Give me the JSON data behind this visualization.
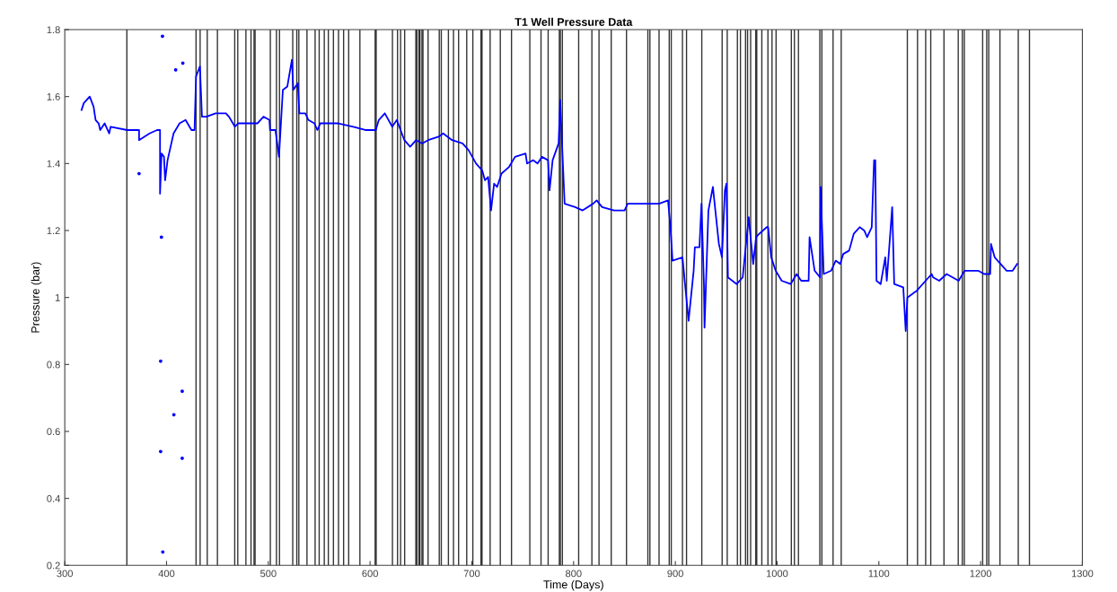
{
  "chart_data": {
    "type": "line",
    "title": "T1 Well Pressure Data",
    "xlabel": "Time (Days)",
    "ylabel": "Pressure (bar)",
    "xlim": [
      300,
      1300
    ],
    "xticks": [
      300,
      400,
      500,
      600,
      700,
      800,
      900,
      1000,
      1100,
      1200,
      1300
    ],
    "ylim": [
      0.2,
      1.8
    ],
    "yticks": [
      0.2,
      0.4,
      0.6,
      0.8,
      1,
      1.2,
      1.4,
      1.6,
      1.8
    ],
    "grid": false,
    "marker": "none",
    "line_style": "solid",
    "series": [
      {
        "color": "#0000ff",
        "x": [
          316.5,
          318.6,
          324.5,
          328.3,
          330.3,
          333.3,
          334.8,
          339.2,
          343.6,
          345.1,
          361.3,
          362.7,
          373,
          373,
          383.3,
          390.7,
          393.6,
          393.6,
          395.1,
          397.5,
          398.6,
          401,
          406.9,
          412.8,
          418.7,
          424.5,
          427.5,
          429,
          432.8,
          434.8,
          439.2,
          448.1,
          458.4,
          461.3,
          467.2,
          470.2,
          483.4,
          489.3,
          495.2,
          501.1,
          501.7,
          507,
          510.5,
          514.3,
          518.7,
          523.2,
          524.6,
          529,
          530.5,
          536.4,
          539.4,
          545.3,
          548.2,
          551.1,
          568.8,
          583.6,
          595.3,
          605.6,
          608.6,
          614.5,
          621.8,
          626.3,
          633.7,
          639.4,
          645.3,
          651.2,
          657.1,
          667.4,
          671.8,
          680.6,
          690.9,
          696.8,
          704.2,
          710.1,
          713,
          716,
          718.9,
          721.9,
          724.8,
          729.2,
          736.6,
          742.5,
          752.8,
          754.3,
          760.2,
          764.6,
          769,
          774.9,
          776.4,
          779.4,
          785.3,
          786.8,
          791.2,
          801.5,
          808.9,
          819.2,
          822.7,
          828,
          839.8,
          850.1,
          853.1,
          875.2,
          884,
          892.8,
          895.2,
          897.2,
          907,
          913,
          918,
          919.2,
          923.7,
          925.7,
          928.1,
          928.7,
          932.5,
          936.9,
          942.8,
          945.8,
          948.7,
          950.2,
          951.7,
          960.3,
          966.2,
          972.1,
          976.5,
          979.4,
          982.4,
          989.8,
          991.2,
          994.2,
          998.6,
          1004.5,
          1013.3,
          1019.2,
          1023.7,
          1031,
          1031.9,
          1036.9,
          1042.2,
          1042.8,
          1045.8,
          1053.1,
          1057.6,
          1062,
          1065,
          1070.8,
          1075.3,
          1081.2,
          1085.6,
          1088.5,
          1093,
          1095.3,
          1096.5,
          1097.7,
          1101.8,
          1106.3,
          1107.8,
          1113.1,
          1115.1,
          1124,
          1126.4,
          1128,
          1137.2,
          1146,
          1151.9,
          1153.4,
          1159.3,
          1166.6,
          1178.4,
          1184.3,
          1197.6,
          1203.5,
          1209.4,
          1210.2,
          1213.8,
          1219.7,
          1225.6,
          1231.5,
          1235.9
        ],
        "values": [
          1.56,
          1.58,
          1.6,
          1.57,
          1.53,
          1.52,
          1.5,
          1.52,
          1.49,
          1.51,
          1.5,
          1.5,
          1.5,
          1.47,
          1.49,
          1.5,
          1.5,
          1.31,
          1.43,
          1.42,
          1.35,
          1.41,
          1.49,
          1.52,
          1.53,
          1.5,
          1.5,
          1.66,
          1.69,
          1.54,
          1.54,
          1.55,
          1.55,
          1.54,
          1.51,
          1.52,
          1.52,
          1.52,
          1.54,
          1.53,
          1.5,
          1.5,
          1.42,
          1.62,
          1.63,
          1.71,
          1.62,
          1.64,
          1.55,
          1.55,
          1.53,
          1.52,
          1.5,
          1.52,
          1.52,
          1.51,
          1.5,
          1.5,
          1.53,
          1.55,
          1.51,
          1.53,
          1.47,
          1.45,
          1.47,
          1.46,
          1.47,
          1.48,
          1.49,
          1.47,
          1.46,
          1.44,
          1.4,
          1.38,
          1.35,
          1.36,
          1.26,
          1.34,
          1.33,
          1.37,
          1.39,
          1.42,
          1.43,
          1.4,
          1.41,
          1.4,
          1.42,
          1.41,
          1.32,
          1.41,
          1.46,
          1.59,
          1.28,
          1.27,
          1.26,
          1.28,
          1.29,
          1.27,
          1.26,
          1.26,
          1.28,
          1.28,
          1.28,
          1.29,
          1.21,
          1.11,
          1.12,
          0.93,
          1.08,
          1.15,
          1.15,
          1.28,
          1.04,
          0.91,
          1.26,
          1.33,
          1.16,
          1.12,
          1.32,
          1.34,
          1.06,
          1.04,
          1.06,
          1.24,
          1.1,
          1.18,
          1.19,
          1.21,
          1.21,
          1.12,
          1.08,
          1.05,
          1.04,
          1.07,
          1.05,
          1.05,
          1.18,
          1.08,
          1.06,
          1.33,
          1.07,
          1.08,
          1.11,
          1.1,
          1.13,
          1.14,
          1.19,
          1.21,
          1.2,
          1.18,
          1.21,
          1.41,
          1.41,
          1.05,
          1.04,
          1.12,
          1.05,
          1.27,
          1.04,
          1.03,
          0.9,
          1.0,
          1.02,
          1.05,
          1.07,
          1.06,
          1.05,
          1.07,
          1.05,
          1.08,
          1.08,
          1.07,
          1.07,
          1.16,
          1.12,
          1.1,
          1.08,
          1.08,
          1.1
        ]
      },
      {
        "type": "scatter",
        "color": "#0000ff",
        "x": [
          373,
          394.2,
          394.2,
          395,
          396.3,
          396,
          407.2,
          409,
          415.4,
          415.4,
          416
        ],
        "values": [
          1.37,
          0.81,
          0.54,
          1.18,
          0.24,
          1.78,
          0.65,
          1.68,
          0.72,
          0.52,
          1.7
        ]
      }
    ],
    "ref_lines": [
      {
        "axis": "x",
        "value": 361
      },
      {
        "axis": "x",
        "value": 429
      },
      {
        "axis": "x",
        "value": 433
      },
      {
        "axis": "x",
        "value": 440
      },
      {
        "axis": "x",
        "value": 450
      },
      {
        "axis": "x",
        "value": 467
      },
      {
        "axis": "x",
        "value": 470
      },
      {
        "axis": "x",
        "value": 478
      },
      {
        "axis": "x",
        "value": 483
      },
      {
        "axis": "x",
        "value": 486
      },
      {
        "axis": "x",
        "value": 487
      },
      {
        "axis": "x",
        "value": 502
      },
      {
        "axis": "x",
        "value": 508
      },
      {
        "axis": "x",
        "value": 511
      },
      {
        "axis": "x",
        "value": 524
      },
      {
        "axis": "x",
        "value": 528
      },
      {
        "axis": "x",
        "value": 530
      },
      {
        "axis": "x",
        "value": 538
      },
      {
        "axis": "x",
        "value": 546
      },
      {
        "axis": "x",
        "value": 550
      },
      {
        "axis": "x",
        "value": 555
      },
      {
        "axis": "x",
        "value": 559
      },
      {
        "axis": "x",
        "value": 564
      },
      {
        "axis": "x",
        "value": 569
      },
      {
        "axis": "x",
        "value": 574
      },
      {
        "axis": "x",
        "value": 579
      },
      {
        "axis": "x",
        "value": 590
      },
      {
        "axis": "x",
        "value": 605
      },
      {
        "axis": "x",
        "value": 606
      },
      {
        "axis": "x",
        "value": 622
      },
      {
        "axis": "x",
        "value": 627
      },
      {
        "axis": "x",
        "value": 630
      },
      {
        "axis": "x",
        "value": 634
      },
      {
        "axis": "x",
        "value": 645
      },
      {
        "axis": "x",
        "value": 646
      },
      {
        "axis": "x",
        "value": 648
      },
      {
        "axis": "x",
        "value": 649
      },
      {
        "axis": "x",
        "value": 651
      },
      {
        "axis": "x",
        "value": 652
      },
      {
        "axis": "x",
        "value": 657
      },
      {
        "axis": "x",
        "value": 668
      },
      {
        "axis": "x",
        "value": 670
      },
      {
        "axis": "x",
        "value": 677
      },
      {
        "axis": "x",
        "value": 682
      },
      {
        "axis": "x",
        "value": 687
      },
      {
        "axis": "x",
        "value": 695
      },
      {
        "axis": "x",
        "value": 701
      },
      {
        "axis": "x",
        "value": 709
      },
      {
        "axis": "x",
        "value": 710
      },
      {
        "axis": "x",
        "value": 718
      },
      {
        "axis": "x",
        "value": 728
      },
      {
        "axis": "x",
        "value": 739
      },
      {
        "axis": "x",
        "value": 757
      },
      {
        "axis": "x",
        "value": 768
      },
      {
        "axis": "x",
        "value": 775
      },
      {
        "axis": "x",
        "value": 786
      },
      {
        "axis": "x",
        "value": 787
      },
      {
        "axis": "x",
        "value": 789
      },
      {
        "axis": "x",
        "value": 805
      },
      {
        "axis": "x",
        "value": 818
      },
      {
        "axis": "x",
        "value": 825
      },
      {
        "axis": "x",
        "value": 837
      },
      {
        "axis": "x",
        "value": 852
      },
      {
        "axis": "x",
        "value": 873
      },
      {
        "axis": "x",
        "value": 875
      },
      {
        "axis": "x",
        "value": 884
      },
      {
        "axis": "x",
        "value": 894
      },
      {
        "axis": "x",
        "value": 896
      },
      {
        "axis": "x",
        "value": 907
      },
      {
        "axis": "x",
        "value": 911
      },
      {
        "axis": "x",
        "value": 926
      },
      {
        "axis": "x",
        "value": 946
      },
      {
        "axis": "x",
        "value": 951
      },
      {
        "axis": "x",
        "value": 961
      },
      {
        "axis": "x",
        "value": 964
      },
      {
        "axis": "x",
        "value": 969
      },
      {
        "axis": "x",
        "value": 971
      },
      {
        "axis": "x",
        "value": 974
      },
      {
        "axis": "x",
        "value": 979
      },
      {
        "axis": "x",
        "value": 980
      },
      {
        "axis": "x",
        "value": 985
      },
      {
        "axis": "x",
        "value": 991
      },
      {
        "axis": "x",
        "value": 995
      },
      {
        "axis": "x",
        "value": 999
      },
      {
        "axis": "x",
        "value": 1014
      },
      {
        "axis": "x",
        "value": 1017
      },
      {
        "axis": "x",
        "value": 1021
      },
      {
        "axis": "x",
        "value": 1042
      },
      {
        "axis": "x",
        "value": 1044
      },
      {
        "axis": "x",
        "value": 1055
      },
      {
        "axis": "x",
        "value": 1063
      },
      {
        "axis": "x",
        "value": 1128
      },
      {
        "axis": "x",
        "value": 1138
      },
      {
        "axis": "x",
        "value": 1146
      },
      {
        "axis": "x",
        "value": 1151
      },
      {
        "axis": "x",
        "value": 1164
      },
      {
        "axis": "x",
        "value": 1178
      },
      {
        "axis": "x",
        "value": 1182
      },
      {
        "axis": "x",
        "value": 1184
      },
      {
        "axis": "x",
        "value": 1202
      },
      {
        "axis": "x",
        "value": 1206
      },
      {
        "axis": "x",
        "value": 1208
      },
      {
        "axis": "x",
        "value": 1219
      },
      {
        "axis": "x",
        "value": 1237
      },
      {
        "axis": "x",
        "value": 1248
      }
    ]
  }
}
